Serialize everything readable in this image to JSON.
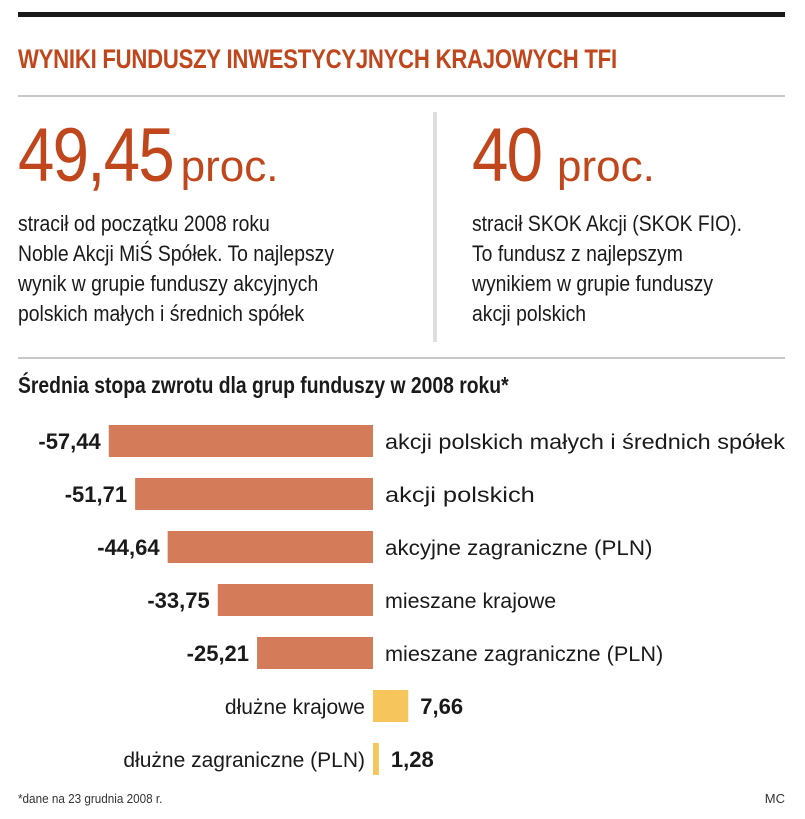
{
  "title": "WYNIKI FUNDUSZY INWESTYCYJNYCH KRAJOWYCH TFI",
  "stats": [
    {
      "value": "49,45",
      "unit": "proc.",
      "lines": [
        "stracił od początku 2008 roku",
        "Noble Akcji MiŚ Spółek. To najlepszy",
        "wynik w grupie funduszy akcyjnych",
        "polskich małych i średnich spółek"
      ]
    },
    {
      "value": "40",
      "unit": "proc.",
      "lines": [
        "stracił SKOK Akcji (SKOK FIO).",
        "To fundusz z najlepszym",
        "wynikiem w grupie funduszy",
        "akcji polskich"
      ]
    }
  ],
  "chart_data": {
    "type": "bar",
    "orientation": "horizontal",
    "title": "Średnia stopa zwrotu dla grup funduszy w 2008 roku*",
    "categories": [
      "akcji polskich małych i średnich spółek",
      "akcji polskich",
      "akcyjne zagraniczne (PLN)",
      "mieszane krajowe",
      "mieszane zagraniczne (PLN)",
      "dłużne krajowe",
      "dłużne zagraniczne (PLN)"
    ],
    "values": [
      -57.44,
      -51.71,
      -44.64,
      -33.75,
      -25.21,
      7.66,
      1.28
    ],
    "value_labels": [
      "-57,44",
      "-51,71",
      "-44,64",
      "-33,75",
      "-25,21",
      "7,66",
      "1,28"
    ],
    "negative_color": "#d47c5a",
    "positive_color": "#f6c55c"
  },
  "footnote": "*dane na 23 grudnia 2008 r.",
  "credit": "MC",
  "colors": {
    "accent": "#c0461c",
    "rule": "#1a1a1a"
  }
}
